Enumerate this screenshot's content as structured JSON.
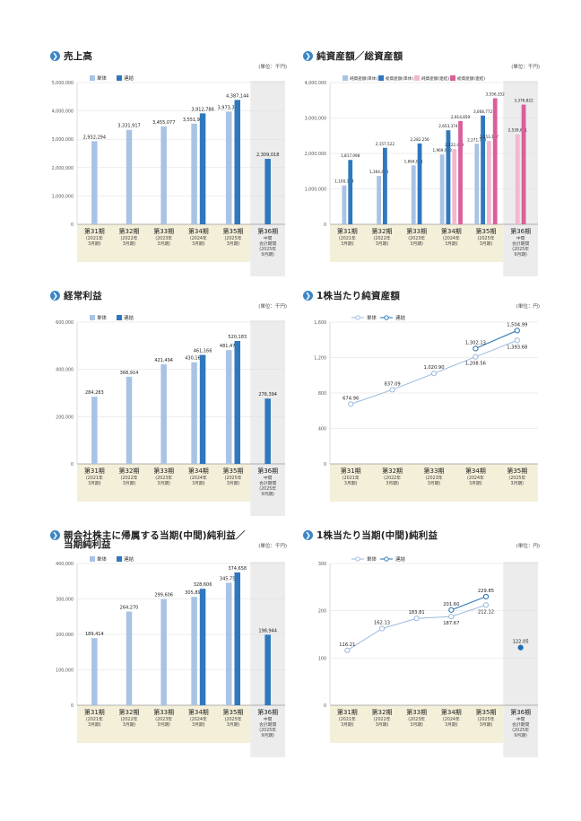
{
  "panels": [
    {
      "id": "sales",
      "title": "売上高",
      "unit": "(単位：千円)",
      "chart_data": {
        "type": "bar",
        "title": "売上高",
        "legend": [
          "単体",
          "連結"
        ],
        "ylim": [
          0,
          5000000
        ],
        "yticks": [
          0,
          1000000,
          2000000,
          3000000,
          4000000,
          5000000
        ],
        "ytick_labels": [
          "0",
          "1,000,000",
          "2,000,000",
          "3,000,000",
          "4,000,000",
          "5,000,000"
        ],
        "categories": [
          {
            "name": "第31期",
            "sub": [
              "(2021年",
              "3月期)"
            ]
          },
          {
            "name": "第32期",
            "sub": [
              "(2022年",
              "3月期)"
            ]
          },
          {
            "name": "第33期",
            "sub": [
              "(2023年",
              "3月期)"
            ]
          },
          {
            "name": "第34期",
            "sub": [
              "(2024年",
              "3月期)"
            ]
          },
          {
            "name": "第35期",
            "sub": [
              "(2025年",
              "3月期)"
            ]
          },
          {
            "name": "第36期",
            "sub": [
              "中間",
              "会計期間",
              "(2025年",
              "9月期)"
            ]
          }
        ],
        "series": [
          {
            "name": "単体",
            "color": "#a9c3e4",
            "values": [
              2932294,
              3331917,
              3455077,
              3551916,
              3973339,
              null
            ],
            "labels": [
              "2,932,294",
              "3,331,917",
              "3,455,077",
              "3,551,916",
              "3,973,339",
              ""
            ]
          },
          {
            "name": "連結",
            "color": "#2f78bd",
            "values": [
              null,
              null,
              null,
              3912786,
              4387144,
              2309018
            ],
            "labels": [
              "",
              "",
              "",
              "3,912,786",
              "4,387,144",
              "2,309,018"
            ]
          }
        ],
        "interim_shaded": true
      }
    },
    {
      "id": "net_assets",
      "title": "純資産額／総資産額",
      "unit": "(単位：千円)",
      "chart_data": {
        "type": "bar",
        "title": "純資産額／総資産額",
        "legend": [
          "純資産額(単体)",
          "総資産額(単体)",
          "純資産額(連結)",
          "総資産額(連結)"
        ],
        "ylim": [
          0,
          4000000
        ],
        "yticks": [
          0,
          1000000,
          2000000,
          3000000,
          4000000
        ],
        "ytick_labels": [
          "0",
          "1,000,000",
          "2,000,000",
          "3,000,000",
          "4,000,000"
        ],
        "categories": [
          {
            "name": "第31期",
            "sub": [
              "(2021年",
              "3月期)"
            ]
          },
          {
            "name": "第32期",
            "sub": [
              "(2022年",
              "3月期)"
            ]
          },
          {
            "name": "第33期",
            "sub": [
              "(2023年",
              "3月期)"
            ]
          },
          {
            "name": "第34期",
            "sub": [
              "(2024年",
              "3月期)"
            ]
          },
          {
            "name": "第35期",
            "sub": [
              "(2025年",
              "3月期)"
            ]
          },
          {
            "name": "第36期",
            "sub": [
              "中間",
              "会計期間",
              "(2025年",
              "9月期)"
            ]
          }
        ],
        "series": [
          {
            "name": "純資産額(単体)",
            "color": "#a9c3e4",
            "values": [
              1100184,
              1364454,
              1664061,
              1969958,
              2271713,
              null
            ],
            "labels": [
              "1,100,184",
              "1,364,454",
              "1,664,061",
              "1,969,958",
              "2,271,713",
              ""
            ]
          },
          {
            "name": "総資産額(単体)",
            "color": "#2f78bd",
            "values": [
              1817098,
              2157522,
              2282256,
              2653374,
              3068772,
              null
            ],
            "labels": [
              "1,817,098",
              "2,157,522",
              "2,282,256",
              "2,653,374",
              "3,068,772",
              ""
            ]
          },
          {
            "name": "純資産額(連結)",
            "color": "#f2b8d2",
            "values": [
              null,
              null,
              null,
              2122479,
              2353127,
              2539651
            ],
            "labels": [
              "",
              "",
              "",
              "2,122,479",
              "2,353,127",
              "2,539,651"
            ]
          },
          {
            "name": "総資産額(連結)",
            "color": "#d9609a",
            "values": [
              null,
              null,
              null,
              2914659,
              3556352,
              3376822
            ],
            "labels": [
              "",
              "",
              "",
              "2,914,659",
              "3,556,352",
              "3,376,822"
            ]
          }
        ],
        "interim_shaded": true
      }
    },
    {
      "id": "ordinary_profit",
      "title": "経常利益",
      "unit": "(単位：千円)",
      "chart_data": {
        "type": "bar",
        "title": "経常利益",
        "legend": [
          "単体",
          "連結"
        ],
        "ylim": [
          0,
          600000
        ],
        "yticks": [
          0,
          200000,
          400000,
          600000
        ],
        "ytick_labels": [
          "0",
          "200,000",
          "400,000",
          "600,000"
        ],
        "categories": [
          {
            "name": "第31期",
            "sub": [
              "(2021年",
              "3月期)"
            ]
          },
          {
            "name": "第32期",
            "sub": [
              "(2022年",
              "3月期)"
            ]
          },
          {
            "name": "第33期",
            "sub": [
              "(2023年",
              "3月期)"
            ]
          },
          {
            "name": "第34期",
            "sub": [
              "(2024年",
              "3月期)"
            ]
          },
          {
            "name": "第35期",
            "sub": [
              "(2025年",
              "3月期)"
            ]
          },
          {
            "name": "第36期",
            "sub": [
              "中間",
              "会計期間",
              "(2025年",
              "9月期)"
            ]
          }
        ],
        "series": [
          {
            "name": "単体",
            "color": "#a9c3e4",
            "values": [
              284283,
              368914,
              421494,
              430162,
              481475,
              null
            ],
            "labels": [
              "284,283",
              "368,914",
              "421,494",
              "430,162",
              "481,475",
              ""
            ]
          },
          {
            "name": "連結",
            "color": "#2f78bd",
            "values": [
              null,
              null,
              null,
              461166,
              520183,
              276394
            ],
            "labels": [
              "",
              "",
              "",
              "461,166",
              "520,183",
              "276,394"
            ]
          }
        ],
        "interim_shaded": true
      }
    },
    {
      "id": "bps",
      "title": "1株当たり純資産額",
      "unit": "(単位：円)",
      "chart_data": {
        "type": "line",
        "title": "1株当たり純資産額",
        "legend": [
          "単体",
          "連結"
        ],
        "ylim": [
          0,
          1600
        ],
        "yticks": [
          0,
          400,
          800,
          1200,
          1600
        ],
        "ytick_labels": [
          "0",
          "400",
          "800",
          "1,200",
          "1,600"
        ],
        "categories": [
          {
            "name": "第31期",
            "sub": [
              "(2021年",
              "3月期)"
            ]
          },
          {
            "name": "第32期",
            "sub": [
              "(2022年",
              "3月期)"
            ]
          },
          {
            "name": "第33期",
            "sub": [
              "(2023年",
              "3月期)"
            ]
          },
          {
            "name": "第34期",
            "sub": [
              "(2024年",
              "3月期)"
            ]
          },
          {
            "name": "第35期",
            "sub": [
              "(2025年",
              "3月期)"
            ]
          }
        ],
        "series": [
          {
            "name": "単体",
            "color": "#9ab8dd",
            "values": [
              674.96,
              837.09,
              1020.9,
              1208.56,
              1393.68
            ],
            "labels": [
              "674.96",
              "837.09",
              "1,020.90",
              "1,208.56",
              "1,393.68"
            ]
          },
          {
            "name": "連結",
            "color": "#1f6fb2",
            "values": [
              null,
              null,
              null,
              1302.13,
              1504.99
            ],
            "labels": [
              "",
              "",
              "",
              "1,302.13",
              "1,504.99"
            ]
          }
        ],
        "interim_shaded": false
      }
    },
    {
      "id": "net_income",
      "title": "親会社株主に帰属する当期(中間)純利益／",
      "title2": "当期純利益",
      "unit": "(単位：千円)",
      "chart_data": {
        "type": "bar",
        "title": "親会社株主に帰属する当期(中間)純利益／当期純利益",
        "legend": [
          "単体",
          "連結"
        ],
        "ylim": [
          0,
          400000
        ],
        "yticks": [
          0,
          100000,
          200000,
          300000,
          400000
        ],
        "ytick_labels": [
          "0",
          "100,000",
          "200,000",
          "300,000",
          "400,000"
        ],
        "categories": [
          {
            "name": "第31期",
            "sub": [
              "(2021年",
              "3月期)"
            ]
          },
          {
            "name": "第32期",
            "sub": [
              "(2022年",
              "3月期)"
            ]
          },
          {
            "name": "第33期",
            "sub": [
              "(2023年",
              "3月期)"
            ]
          },
          {
            "name": "第34期",
            "sub": [
              "(2024年",
              "3月期)"
            ]
          },
          {
            "name": "第35期",
            "sub": [
              "(2025年",
              "3月期)"
            ]
          },
          {
            "name": "第36期",
            "sub": [
              "中間",
              "会計期間",
              "(2025年",
              "9月期)"
            ]
          }
        ],
        "series": [
          {
            "name": "単体",
            "color": "#a9c3e4",
            "values": [
              189414,
              264270,
              299606,
              305896,
              345754,
              null
            ],
            "labels": [
              "189,414",
              "264,270",
              "299,606",
              "305,896",
              "345,754",
              ""
            ]
          },
          {
            "name": "連結",
            "color": "#2f78bd",
            "values": [
              null,
              null,
              null,
              328606,
              374658,
              198944
            ],
            "labels": [
              "",
              "",
              "",
              "328,606",
              "374,658",
              "198,944"
            ]
          }
        ],
        "interim_shaded": true
      }
    },
    {
      "id": "eps",
      "title": "1株当たり当期(中間)純利益",
      "unit": "(単位：円)",
      "chart_data": {
        "type": "line",
        "title": "1株当たり当期(中間)純利益",
        "legend": [
          "単体",
          "連結"
        ],
        "ylim": [
          0,
          300
        ],
        "yticks": [
          0,
          100,
          200,
          300
        ],
        "ytick_labels": [
          "0",
          "100",
          "200",
          "300"
        ],
        "categories": [
          {
            "name": "第31期",
            "sub": [
              "(2021年",
              "3月期)"
            ]
          },
          {
            "name": "第32期",
            "sub": [
              "(2022年",
              "3月期)"
            ]
          },
          {
            "name": "第33期",
            "sub": [
              "(2023年",
              "3月期)"
            ]
          },
          {
            "name": "第34期",
            "sub": [
              "(2024年",
              "3月期)"
            ]
          },
          {
            "name": "第35期",
            "sub": [
              "(2025年",
              "3月期)"
            ]
          },
          {
            "name": "第36期",
            "sub": [
              "中間",
              "会計期間",
              "(2025年",
              "9月期)"
            ]
          }
        ],
        "series": [
          {
            "name": "単体",
            "color": "#9ab8dd",
            "values": [
              116.21,
              162.13,
              183.81,
              187.67,
              212.12,
              null
            ],
            "labels": [
              "116.21",
              "162.13",
              "183.81",
              "187.67",
              "212.12",
              ""
            ]
          },
          {
            "name": "連結",
            "color": "#1f6fb2",
            "values": [
              null,
              null,
              null,
              201.6,
              229.85,
              122.05
            ],
            "labels": [
              "",
              "",
              "",
              "201.60",
              "229.85",
              "122.05"
            ]
          }
        ],
        "interim_shaded": true
      }
    }
  ]
}
